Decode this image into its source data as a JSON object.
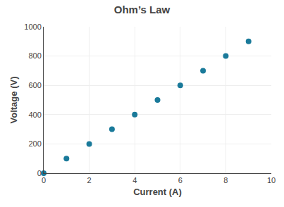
{
  "chart_data": {
    "type": "scatter",
    "title": "Ohm’s Law",
    "xlabel": "Current (A)",
    "ylabel": "Voltage (V)",
    "x": [
      0,
      1,
      2,
      3,
      4,
      5,
      6,
      7,
      8,
      9
    ],
    "values": [
      0,
      100,
      200,
      300,
      400,
      500,
      600,
      700,
      800,
      900
    ],
    "color": "#1a7a9a",
    "xlim": [
      0,
      10
    ],
    "ylim": [
      0,
      1000
    ],
    "xticks": [
      0,
      2,
      4,
      6,
      8,
      10
    ],
    "yticks": [
      0,
      200,
      400,
      600,
      800,
      1000
    ],
    "grid": true
  }
}
